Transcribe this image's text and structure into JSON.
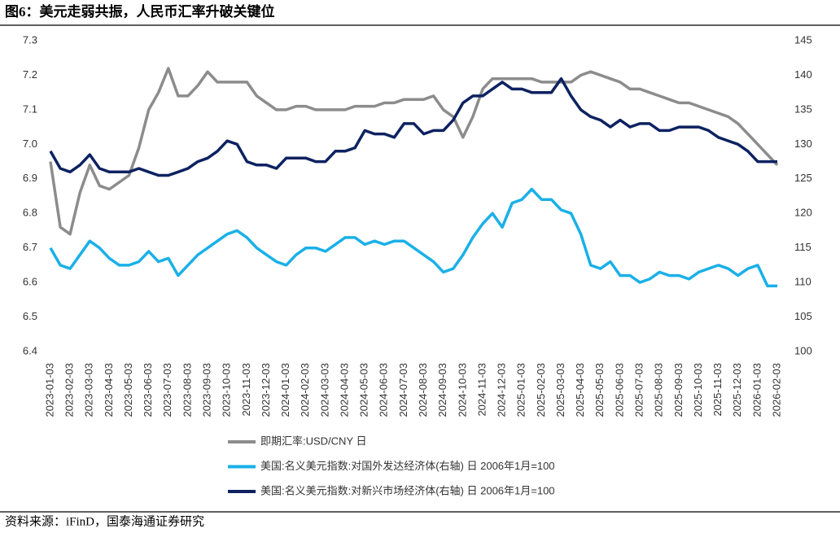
{
  "chart_data": {
    "type": "line",
    "title": "图6：美元走弱共振，人民币汇率升破关键位",
    "source": "资料来源：iFinD，国泰海通证券研究",
    "categories": [
      "2023-01-03",
      null,
      "2023-02-03",
      null,
      "2023-03-03",
      null,
      "2023-04-03",
      null,
      "2023-05-03",
      null,
      "2023-06-03",
      null,
      "2023-07-03",
      null,
      "2023-08-03",
      null,
      "2023-09-03",
      null,
      "2023-10-03",
      null,
      "2023-11-03",
      null,
      "2023-12-03",
      null,
      "2024-01-03",
      null,
      "2024-02-03",
      null,
      "2024-03-03",
      null,
      "2024-04-03",
      null,
      "2024-05-03",
      null,
      "2024-06-03",
      null,
      "2024-07-03",
      null,
      "2024-08-03",
      null,
      "2024-09-03",
      null,
      "2024-10-03",
      null,
      "2024-11-03",
      null,
      "2024-12-03",
      null,
      "2025-01-03",
      null,
      "2025-02-03",
      null,
      "2025-03-03",
      null,
      "2025-04-03",
      null,
      "2025-05-03",
      null,
      "2025-06-03",
      null,
      "2025-07-03",
      null,
      "2025-08-03",
      null,
      "2025-09-03",
      null,
      "2025-10-03",
      null,
      "2025-11-03",
      null,
      "2025-12-03",
      null,
      "2026-01-03",
      null,
      "2026-02-03"
    ],
    "series": [
      {
        "name": "即期汇率:USD/CNY 日",
        "color": "#8c8c8c",
        "axis": "y",
        "values": [
          6.95,
          6.76,
          6.74,
          6.86,
          6.94,
          6.88,
          6.87,
          6.89,
          6.91,
          6.99,
          7.1,
          7.15,
          7.22,
          7.14,
          7.14,
          7.17,
          7.21,
          7.18,
          7.18,
          7.18,
          7.18,
          7.14,
          7.12,
          7.1,
          7.1,
          7.11,
          7.11,
          7.1,
          7.1,
          7.1,
          7.1,
          7.11,
          7.11,
          7.11,
          7.12,
          7.12,
          7.13,
          7.13,
          7.13,
          7.14,
          7.1,
          7.08,
          7.02,
          7.08,
          7.16,
          7.19,
          7.19,
          7.19,
          7.19,
          7.19,
          7.18,
          7.18,
          7.18,
          7.18,
          7.2,
          7.21,
          7.2,
          7.19,
          7.18,
          7.16,
          7.16,
          7.15,
          7.14,
          7.13,
          7.12,
          7.12,
          7.11,
          7.1,
          7.09,
          7.08,
          7.06,
          7.03,
          7.0,
          6.97,
          6.94
        ]
      },
      {
        "name": "美国:名义美元指数:对国外发达经济体(右轴) 日 2006年1月=100",
        "color": "#1ab0e8",
        "axis": "y2",
        "values": [
          115,
          112.5,
          112,
          114,
          116,
          115,
          113.5,
          112.5,
          112.5,
          113,
          114.5,
          113,
          113.5,
          111,
          112.5,
          114,
          115,
          116,
          117,
          117.5,
          116.5,
          115,
          114,
          113,
          112.5,
          114,
          115,
          115,
          114.5,
          115.5,
          116.5,
          116.5,
          115.5,
          116,
          115.5,
          116,
          116,
          115,
          114,
          113,
          111.5,
          112,
          114,
          116.5,
          118.5,
          120,
          118,
          121.5,
          122,
          123.5,
          122,
          122,
          120.5,
          120,
          117,
          112.5,
          112,
          113,
          111,
          111,
          110,
          110.5,
          111.5,
          111,
          111,
          110.5,
          111.5,
          112,
          112.5,
          112,
          111,
          112,
          112.5,
          109.5,
          109.5
        ]
      },
      {
        "name": "美国:名义美元指数:对新兴市场经济体(右轴) 日 2006年1月=100",
        "color": "#0d2261",
        "axis": "y2",
        "values": [
          129,
          126.5,
          126,
          127,
          128.5,
          126.5,
          126,
          126,
          126,
          126.5,
          126,
          125.5,
          125.5,
          126,
          126.5,
          127.5,
          128,
          129,
          130.5,
          130,
          127.5,
          127,
          127,
          126.5,
          128,
          128,
          128,
          127.5,
          127.5,
          129,
          129,
          129.5,
          132,
          131.5,
          131.5,
          131,
          133,
          133,
          131.5,
          132,
          132,
          133.5,
          136,
          137,
          137,
          138,
          139,
          138,
          138,
          137.5,
          137.5,
          137.5,
          139.5,
          137,
          135,
          134,
          133.5,
          132.5,
          133.5,
          132.5,
          133,
          133,
          132,
          132,
          132.5,
          132.5,
          132.5,
          132,
          131,
          130.5,
          130,
          129,
          127.5,
          127.5,
          127.5
        ]
      }
    ],
    "ylim": [
      6.4,
      7.3
    ],
    "yticks": [
      6.4,
      6.5,
      6.6,
      6.7,
      6.8,
      6.9,
      {
        "value": 7,
        "label": "7.0"
      },
      7.1,
      7.2,
      7.3
    ],
    "y2lim": [
      100,
      145
    ],
    "y2ticks": [
      100,
      105,
      110,
      115,
      120,
      125,
      130,
      135,
      140,
      145
    ]
  }
}
